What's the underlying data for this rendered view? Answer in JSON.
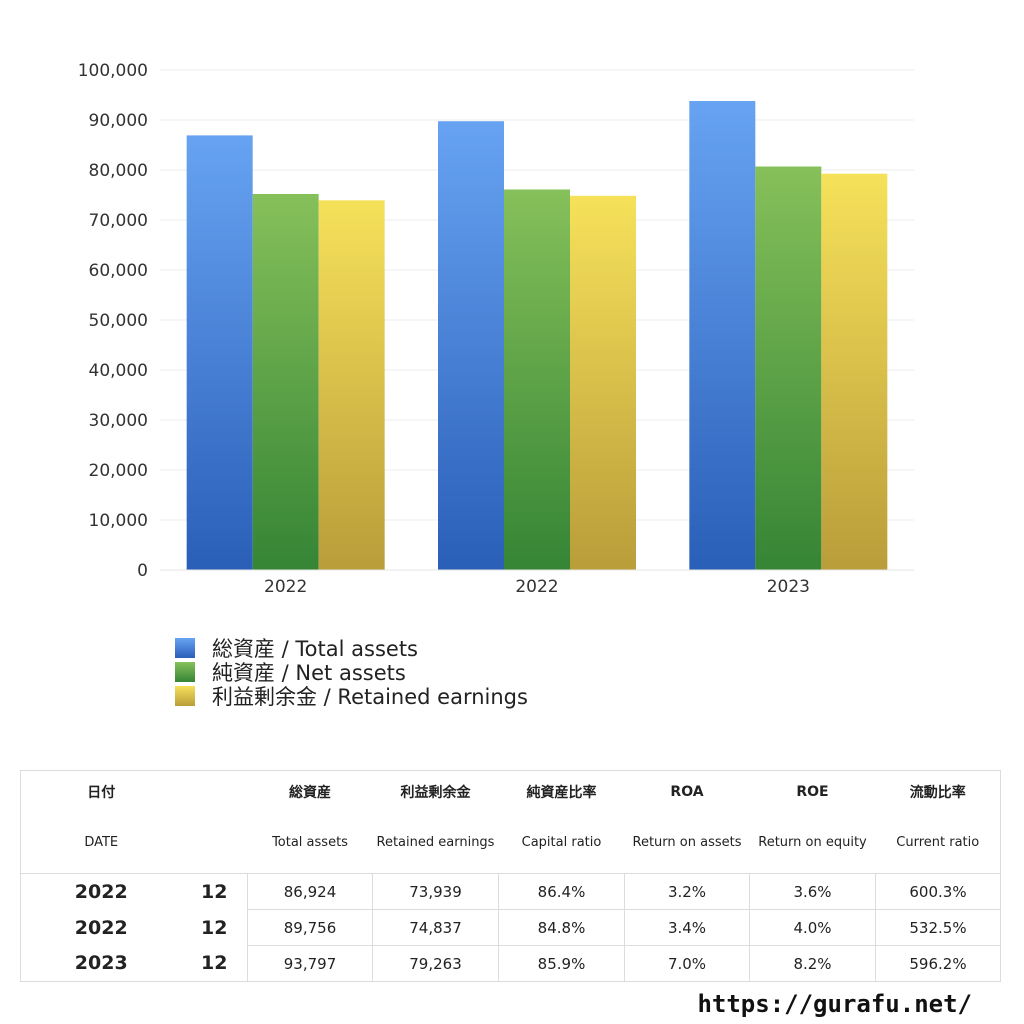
{
  "chart_data": {
    "type": "bar",
    "categories": [
      "2022",
      "2022",
      "2023"
    ],
    "series": [
      {
        "name": "総資産 / Total assets",
        "values": [
          86924,
          89756,
          93797
        ]
      },
      {
        "name": "純資産 / Net assets",
        "values": [
          75200,
          76100,
          80700
        ]
      },
      {
        "name": "利益剰余金 / Retained earnings",
        "values": [
          73939,
          74837,
          79263
        ]
      }
    ],
    "ylim": [
      0,
      100000
    ],
    "yticks": [
      "0",
      "10,000",
      "20,000",
      "30,000",
      "40,000",
      "50,000",
      "60,000",
      "70,000",
      "80,000",
      "90,000",
      "100,000"
    ],
    "grid": true,
    "legend_position": "bottom-left",
    "colors": {
      "total_assets": [
        "#67a3f2",
        "#2a5fb8"
      ],
      "net_assets": [
        "#86c05a",
        "#358535"
      ],
      "retained_earnings": [
        "#f6e15a",
        "#b99d3a"
      ]
    }
  },
  "table": {
    "headers_jp": [
      "日付",
      "",
      "総資産",
      "利益剰余金",
      "純資産比率",
      "ROA",
      "ROE",
      "流動比率"
    ],
    "headers_en": [
      "DATE",
      "",
      "Total assets",
      "Retained earnings",
      "Capital ratio",
      "Return on assets",
      "Return on equity",
      "Current ratio"
    ],
    "rows": [
      {
        "year": "2022",
        "month": "12",
        "total_assets": "86,924",
        "retained_earnings": "73,939",
        "capital_ratio": "86.4%",
        "roa": "3.2%",
        "roe": "3.6%",
        "current_ratio": "600.3%"
      },
      {
        "year": "2022",
        "month": "12",
        "total_assets": "89,756",
        "retained_earnings": "74,837",
        "capital_ratio": "84.8%",
        "roa": "3.4%",
        "roe": "4.0%",
        "current_ratio": "532.5%"
      },
      {
        "year": "2023",
        "month": "12",
        "total_assets": "93,797",
        "retained_earnings": "79,263",
        "capital_ratio": "85.9%",
        "roa": "7.0%",
        "roe": "8.2%",
        "current_ratio": "596.2%"
      }
    ]
  },
  "website": "https://gurafu.net/"
}
